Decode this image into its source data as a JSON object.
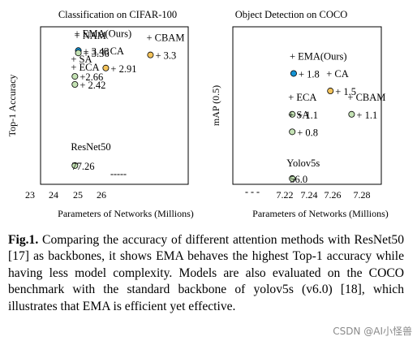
{
  "chart_data": [
    {
      "type": "scatter",
      "title": "Classification on CIFAR-100",
      "xlabel": "Parameters of Networks (Millions)",
      "ylabel": "Top-1 Accuracy",
      "xticks": [
        "23",
        "24",
        "25",
        "26"
      ],
      "xlim": [
        23,
        27.3
      ],
      "ylim": [
        76.7,
        81.4
      ],
      "axis_break_label": "-----",
      "points": [
        {
          "model": "EMA(Ours)",
          "x": 24.1,
          "y": 80.69,
          "label": "+ 3.43",
          "color": "#1493d4"
        },
        {
          "model": "NAM",
          "x": 24.1,
          "y": 80.62,
          "label": "+ 3.36",
          "color": "#c4e2b4"
        },
        {
          "model": "CBAM",
          "x": 26.2,
          "y": 80.56,
          "label": "+ 3.3",
          "color": "#f3c35b"
        },
        {
          "model": "CA",
          "x": 24.9,
          "y": 80.17,
          "label": "+ 2.91",
          "color": "#f3c35b"
        },
        {
          "model": "SA",
          "x": 24.0,
          "y": 79.92,
          "label": "+2.66",
          "color": "#c4e2b4"
        },
        {
          "model": "ECA",
          "x": 24.0,
          "y": 79.68,
          "label": "+ 2.42",
          "color": "#c4e2b4"
        },
        {
          "model": "ResNet50",
          "x": 24.0,
          "y": 77.26,
          "label": "77.26",
          "color": "#c4e2b4"
        }
      ]
    },
    {
      "type": "scatter",
      "title": "Object Detection on COCO",
      "xlabel": "Parameters of Networks (Millions)",
      "ylabel": "mAP (0.5)",
      "xticks": [
        "7.22",
        "7.24",
        "7.26",
        "7.28"
      ],
      "xlim": [
        7.19,
        7.295
      ],
      "ylim": [
        55.9,
        58.6
      ],
      "axis_break_label": "- - -",
      "points": [
        {
          "model": "EMA(Ours)",
          "x": 7.233,
          "y": 57.8,
          "label": "+ 1.8",
          "color": "#1493d4"
        },
        {
          "model": "CA",
          "x": 7.259,
          "y": 57.5,
          "label": "+ 1.5",
          "color": "#f3c35b"
        },
        {
          "model": "ECA",
          "x": 7.232,
          "y": 57.1,
          "label": "+ 1.1",
          "color": "#c4e2b4"
        },
        {
          "model": "CBAM",
          "x": 7.274,
          "y": 57.1,
          "label": "+ 1.1",
          "color": "#c4e2b4"
        },
        {
          "model": "SA",
          "x": 7.232,
          "y": 56.8,
          "label": "+ 0.8",
          "color": "#c4e2b4"
        },
        {
          "model": "Yolov5s",
          "x": 7.232,
          "y": 56.0,
          "label": "56.0",
          "color": "#c4e2b4"
        }
      ]
    }
  ],
  "caption": {
    "fig_label": "Fig.1.",
    "text": " Comparing the accuracy of different attention methods with ResNet50 [17] as backbones, it shows EMA behaves the highest Top-1 accuracy while having less model complexity. Models are also evaluated on the COCO benchmark with the standard backbone of yolov5s (v6.0) [18], which illustrates that EMA is efficient yet effective."
  },
  "watermark": "CSDN @AI小怪兽"
}
